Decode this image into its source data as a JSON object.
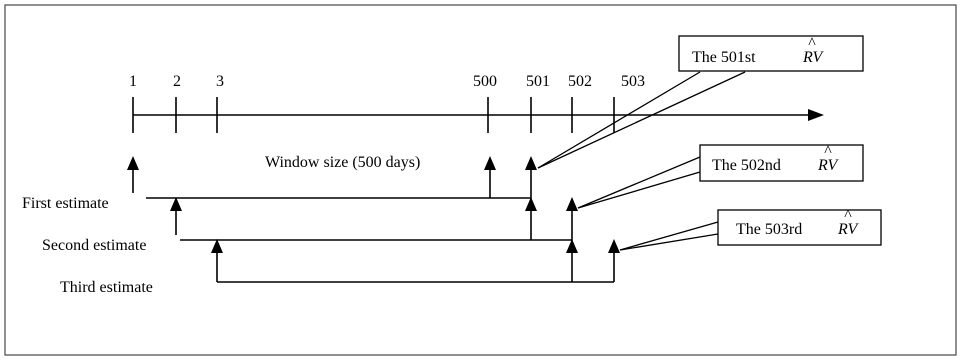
{
  "ticks": [
    "1",
    "2",
    "3",
    "500",
    "501",
    "502",
    "503"
  ],
  "window_label": "Window size (500  days)",
  "estimates": {
    "first": "First estimate",
    "second": "Second estimate",
    "third": "Third estimate"
  },
  "callouts": [
    {
      "prefix": "The 501st",
      "symbol": "RV",
      "hat": "^"
    },
    {
      "prefix": "The 502nd",
      "symbol": "RV",
      "hat": "^"
    },
    {
      "prefix": "The 503rd",
      "symbol": "RV",
      "hat": "^"
    }
  ]
}
